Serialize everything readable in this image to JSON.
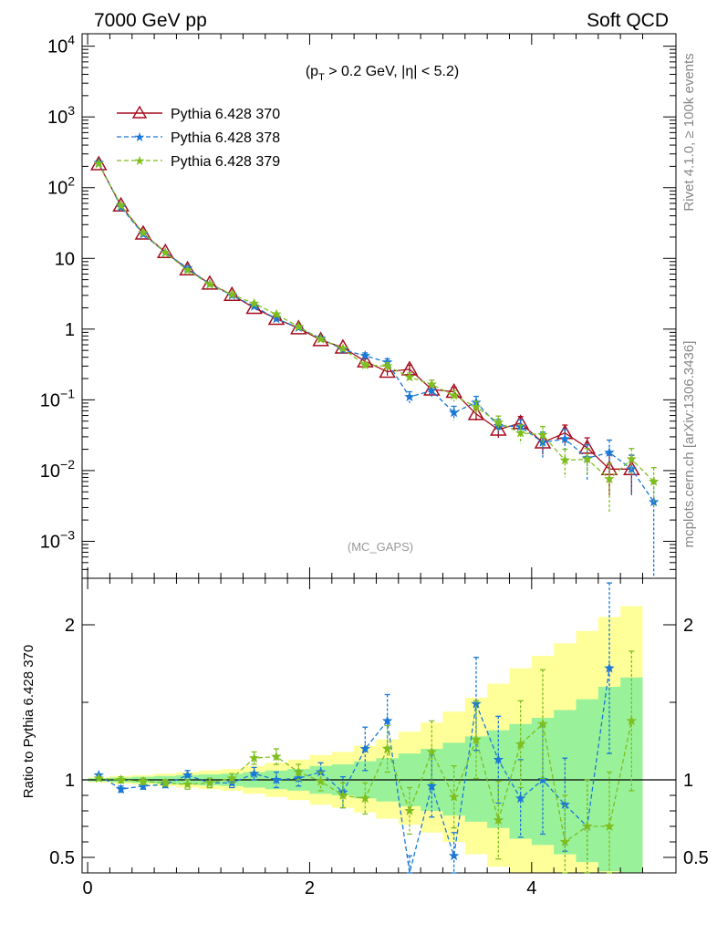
{
  "header": {
    "left": "7000 GeV pp",
    "right": "Soft QCD"
  },
  "side_labels": {
    "rivet": "Rivet 4.1.0, ≥ 100k events",
    "mcplots": "mcplots.cern.ch [arXiv:1306.3436]"
  },
  "watermark": "(MC_GAPS)",
  "cut_label": "(p_T > 0.2 GeV, |η| < 5.2)",
  "colors": {
    "s370": "#a50d1d",
    "s378": "#1a78d6",
    "s379": "#7fbe1f",
    "band_inner": "#99f29a",
    "band_outer": "#ffff99"
  },
  "chart_data": [
    {
      "type": "line",
      "panel": "main",
      "yscale": "log",
      "xlim": [
        -0.05,
        5.3
      ],
      "ylim": [
        0.0003,
        15000
      ],
      "ytick_labels": [
        "10^-3",
        "10^-2",
        "10^-1",
        "1",
        "10",
        "10^2",
        "10^3",
        "10^4"
      ],
      "legend_position": "top-left",
      "x": [
        0.1,
        0.3,
        0.5,
        0.7,
        0.9,
        1.1,
        1.3,
        1.5,
        1.7,
        1.9,
        2.1,
        2.3,
        2.5,
        2.7,
        2.9,
        3.1,
        3.3,
        3.5,
        3.7,
        3.9,
        4.1,
        4.3,
        4.5,
        4.7,
        4.9,
        5.1
      ],
      "series": [
        {
          "name": "Pythia 6.428 370",
          "style": "solid",
          "marker": "triangle",
          "values": [
            215,
            56,
            22.5,
            12.3,
            7.0,
            4.4,
            3.05,
            2.0,
            1.4,
            1.03,
            0.7,
            0.55,
            0.35,
            0.25,
            0.27,
            0.14,
            0.13,
            0.063,
            0.038,
            0.047,
            0.025,
            0.034,
            0.021,
            0.0105,
            0.0105,
            null
          ],
          "errors": [
            0,
            0,
            0,
            0,
            0,
            0,
            0,
            0,
            0,
            0,
            0,
            0,
            0.03,
            0.03,
            0.04,
            0.02,
            0.02,
            0.012,
            0.009,
            0.011,
            0.008,
            0.01,
            0.008,
            0.006,
            0.006,
            0
          ]
        },
        {
          "name": "Pythia 6.428 378",
          "style": "dashed",
          "marker": "star",
          "values": [
            225,
            53,
            22,
            12.0,
            7.3,
            4.3,
            3.0,
            2.1,
            1.4,
            1.05,
            0.74,
            0.51,
            0.42,
            0.34,
            0.11,
            0.135,
            0.066,
            0.092,
            0.043,
            0.042,
            0.025,
            0.028,
            0.015,
            0.018,
            0.0105,
            0.0036
          ],
          "errors": [
            0,
            0,
            0,
            0,
            0,
            0,
            0,
            0,
            0,
            0,
            0,
            0,
            0.04,
            0.04,
            0.02,
            0.025,
            0.015,
            0.02,
            0.01,
            0.01,
            0.01,
            0.01,
            0.008,
            0.009,
            0.006,
            0.0033
          ]
        },
        {
          "name": "Pythia 6.428 379",
          "style": "dashed",
          "marker": "star",
          "values": [
            218,
            56,
            23,
            12.0,
            6.8,
            4.3,
            3.1,
            2.3,
            1.62,
            1.08,
            0.72,
            0.53,
            0.31,
            0.3,
            0.21,
            0.165,
            0.115,
            0.079,
            0.048,
            0.034,
            0.032,
            0.014,
            0.0145,
            0.0076,
            0.0145,
            0.007
          ],
          "errors": [
            0,
            0,
            0,
            0,
            0,
            0,
            0,
            0,
            0,
            0,
            0,
            0,
            0.03,
            0.035,
            0.03,
            0.025,
            0.02,
            0.016,
            0.011,
            0.01,
            0.01,
            0.006,
            0.006,
            0.005,
            0.006,
            0.004
          ]
        }
      ]
    },
    {
      "type": "line",
      "panel": "ratio",
      "ylabel": "Ratio to Pythia 6.428 370",
      "ylim": [
        0.4,
        2.3
      ],
      "yticks": [
        0.5,
        1,
        2
      ],
      "ytick_labels": [
        "0.5",
        "1",
        "2"
      ],
      "xticks": [
        0,
        2,
        4
      ],
      "xtick_labels": [
        "0",
        "2",
        "4"
      ],
      "x": [
        0.1,
        0.3,
        0.5,
        0.7,
        0.9,
        1.1,
        1.3,
        1.5,
        1.7,
        1.9,
        2.1,
        2.3,
        2.5,
        2.7,
        2.9,
        3.1,
        3.3,
        3.5,
        3.7,
        3.9,
        4.1,
        4.3,
        4.5,
        4.7,
        4.9
      ],
      "band_inner": {
        "lo": [
          0.99,
          0.985,
          0.98,
          0.975,
          0.97,
          0.965,
          0.96,
          0.95,
          0.94,
          0.93,
          0.91,
          0.9,
          0.88,
          0.86,
          0.83,
          0.8,
          0.77,
          0.73,
          0.69,
          0.62,
          0.58,
          0.52,
          0.47,
          0.41,
          0.38
        ],
        "hi": [
          1.01,
          1.015,
          1.02,
          1.025,
          1.03,
          1.035,
          1.04,
          1.05,
          1.06,
          1.07,
          1.09,
          1.1,
          1.12,
          1.14,
          1.17,
          1.2,
          1.24,
          1.28,
          1.32,
          1.36,
          1.4,
          1.45,
          1.52,
          1.6,
          1.66
        ]
      },
      "band_outer": {
        "lo": [
          0.985,
          0.975,
          0.97,
          0.96,
          0.95,
          0.94,
          0.93,
          0.91,
          0.89,
          0.87,
          0.84,
          0.82,
          0.79,
          0.75,
          0.71,
          0.66,
          0.6,
          0.52,
          0.44,
          0.36,
          0.3,
          0.25,
          0.2,
          0.16,
          0.14
        ],
        "hi": [
          1.015,
          1.025,
          1.03,
          1.04,
          1.05,
          1.06,
          1.07,
          1.09,
          1.11,
          1.13,
          1.16,
          1.18,
          1.22,
          1.26,
          1.31,
          1.37,
          1.44,
          1.53,
          1.62,
          1.72,
          1.8,
          1.88,
          1.96,
          2.05,
          2.12
        ]
      },
      "series": [
        {
          "name": "Pythia 6.428 378",
          "style": "dashed",
          "marker": "star",
          "values": [
            1.03,
            0.94,
            0.96,
            0.97,
            1.03,
            0.98,
            0.98,
            1.04,
            1.0,
            1.01,
            1.05,
            0.92,
            1.2,
            1.38,
            0.39,
            0.96,
            0.51,
            1.49,
            1.13,
            0.88,
            1.0,
            0.84,
            0.7,
            1.72,
            null
          ],
          "errors": [
            0,
            0.02,
            0.02,
            0.02,
            0.03,
            0.03,
            0.03,
            0.04,
            0.05,
            0.05,
            0.06,
            0.1,
            0.14,
            0.17,
            0.12,
            0.2,
            0.15,
            0.3,
            0.28,
            0.25,
            0.35,
            0.3,
            0.3,
            0.55,
            0
          ]
        },
        {
          "name": "Pythia 6.428 379",
          "style": "dashed",
          "marker": "star",
          "values": [
            1.01,
            1.0,
            0.99,
            0.98,
            0.97,
            0.98,
            1.01,
            1.14,
            1.15,
            1.05,
            0.99,
            0.9,
            0.88,
            1.2,
            0.8,
            1.18,
            0.89,
            1.26,
            0.74,
            1.23,
            1.36,
            0.6,
            0.7,
            0.7,
            1.38
          ],
          "errors": [
            0,
            0.02,
            0.02,
            0.02,
            0.03,
            0.03,
            0.03,
            0.04,
            0.05,
            0.05,
            0.06,
            0.08,
            0.1,
            0.15,
            0.15,
            0.2,
            0.2,
            0.25,
            0.25,
            0.28,
            0.35,
            0.3,
            0.3,
            0.35,
            0.45
          ]
        }
      ]
    }
  ]
}
